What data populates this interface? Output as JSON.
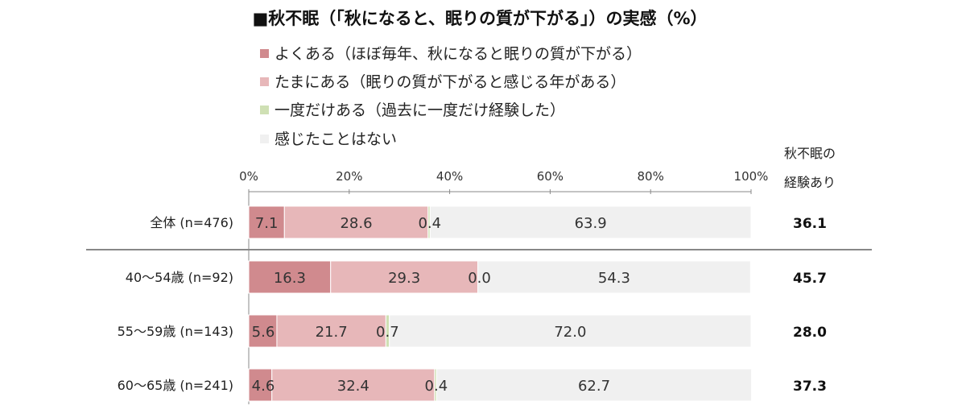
{
  "chart_data": {
    "type": "bar",
    "orientation": "horizontal",
    "stacked": true,
    "title": "■秋不眠（「秋になると、眠りの質が下がる」）の実感（%）",
    "categories": [
      "全体 (n=476)",
      "40〜54歳 (n=92)",
      "55〜59歳 (n=143)",
      "60〜65歳 (n=241)"
    ],
    "series": [
      {
        "name": "よくある（ほぼ毎年、秋になると眠りの質が下がる）",
        "color": "#d08a8e",
        "values": [
          7.1,
          16.3,
          5.6,
          4.6
        ]
      },
      {
        "name": "たまにある（眠りの質が下がると感じる年がある）",
        "color": "#e7b7b9",
        "values": [
          28.6,
          29.3,
          21.7,
          32.4
        ]
      },
      {
        "name": "一度だけある（過去に一度だけ経験した）",
        "color": "#cfe0b4",
        "values": [
          0.4,
          0.0,
          0.7,
          0.4
        ]
      },
      {
        "name": "感じたことはない",
        "color": "#f0f0f0",
        "values": [
          63.9,
          54.3,
          72.0,
          62.7
        ]
      }
    ],
    "data_labels": [
      [
        "7.1",
        "28.6",
        "0.4",
        "63.9"
      ],
      [
        "16.3",
        "29.3",
        "0.0",
        "54.3"
      ],
      [
        "5.6",
        "21.7",
        "0.7",
        "72.0"
      ],
      [
        "4.6",
        "32.4",
        "0.4",
        "62.7"
      ]
    ],
    "xlim": [
      0,
      100
    ],
    "xticks": [
      "0%",
      "20%",
      "40%",
      "60%",
      "80%",
      "100%"
    ],
    "legend_position": "top",
    "right_header": [
      "秋不眠の",
      "経験あり"
    ],
    "right_totals": [
      "36.1",
      "45.7",
      "28.0",
      "37.3"
    ],
    "grid": false
  }
}
